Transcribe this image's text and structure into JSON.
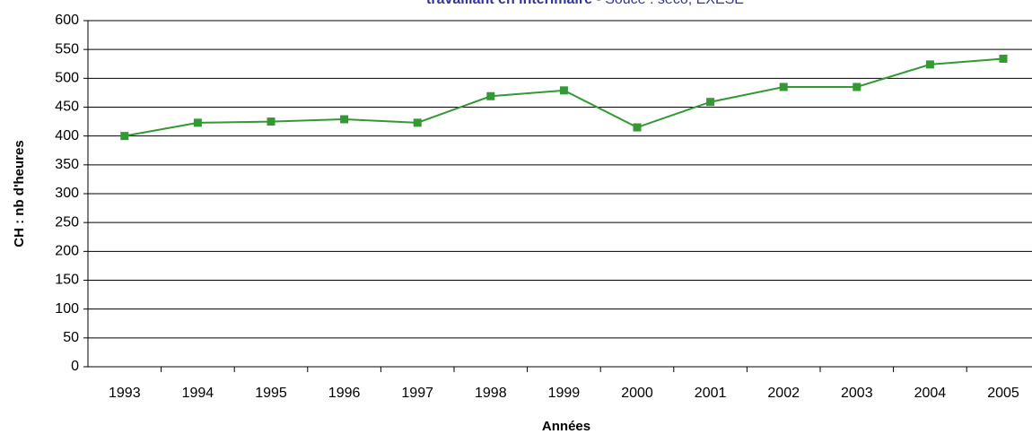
{
  "chart_data": {
    "type": "line",
    "title": "travaillant en intérimaire",
    "subtitle": "- Souce : seco, EXESE",
    "ylabel": "CH : nb d'heures",
    "xlabel": "Années",
    "categories": [
      "1993",
      "1994",
      "1995",
      "1996",
      "1997",
      "1998",
      "1999",
      "2000",
      "2001",
      "2002",
      "2003",
      "2004",
      "2005"
    ],
    "series": [
      {
        "name": "CH",
        "color": "#339933",
        "values": [
          400,
          423,
          425,
          429,
          423,
          469,
          479,
          415,
          459,
          485,
          485,
          524,
          534
        ]
      }
    ],
    "ylim": [
      0,
      600
    ],
    "yticks": [
      0,
      50,
      100,
      150,
      200,
      250,
      300,
      350,
      400,
      450,
      500,
      550,
      600
    ],
    "grid": true
  }
}
